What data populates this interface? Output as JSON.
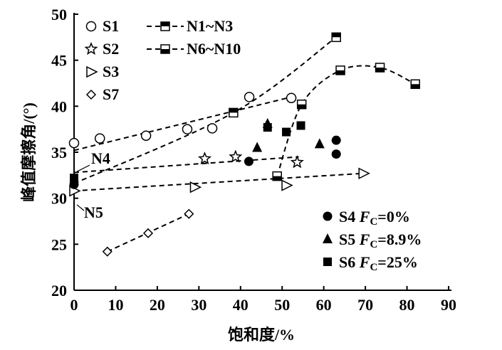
{
  "chart_data": {
    "type": "scatter",
    "xlabel": "饱和度/%",
    "ylabel": "峰值摩擦角/(°)",
    "xlim": [
      0,
      90
    ],
    "ylim": [
      20,
      50
    ],
    "xticks": [
      0,
      10,
      20,
      30,
      40,
      50,
      60,
      70,
      80,
      90
    ],
    "yticks": [
      20,
      25,
      30,
      35,
      40,
      45,
      50
    ],
    "grid": false,
    "legend_placement": "top-left and bottom-right",
    "series": [
      {
        "name": "S1",
        "marker": "circle-open",
        "points": [
          [
            0,
            36.0
          ],
          [
            6.2,
            36.5
          ],
          [
            17.3,
            36.8
          ],
          [
            27.2,
            37.5
          ],
          [
            33.2,
            37.6
          ],
          [
            42.1,
            41.0
          ],
          [
            52.2,
            40.9
          ]
        ],
        "fit": [
          [
            0,
            35.2
          ],
          [
            52.2,
            41.0
          ]
        ]
      },
      {
        "name": "S2",
        "marker": "star-open",
        "points": [
          [
            31.4,
            34.3
          ],
          [
            38.8,
            34.5
          ],
          [
            53.6,
            33.9
          ]
        ],
        "fit": [
          [
            0,
            32.8
          ],
          [
            54,
            34.5
          ]
        ]
      },
      {
        "name": "S3",
        "marker": "triangle-right-open",
        "points": [
          [
            0,
            30.8
          ],
          [
            29,
            31.2
          ],
          [
            51,
            31.4
          ],
          [
            69.5,
            32.7
          ]
        ],
        "fit": [
          [
            0,
            30.8
          ],
          [
            69.5,
            32.7
          ]
        ]
      },
      {
        "name": "S7",
        "marker": "diamond-open",
        "points": [
          [
            8,
            24.2
          ],
          [
            17.8,
            26.2
          ],
          [
            27.6,
            28.3
          ]
        ],
        "fit": [
          [
            8,
            24.2
          ],
          [
            27.6,
            28.3
          ]
        ]
      },
      {
        "name": "N1~N3",
        "marker": "square-half-top",
        "points": [
          [
            38.3,
            39.3
          ],
          [
            63,
            47.5
          ]
        ],
        "fit": [
          [
            0,
            31.6
          ],
          [
            38.3,
            39.3
          ],
          [
            63,
            47.5
          ]
        ]
      },
      {
        "name": "N6~N10",
        "marker": "square-half-bottom",
        "points": [
          [
            48.8,
            32.4
          ],
          [
            54.7,
            40.2
          ],
          [
            64,
            43.9
          ],
          [
            73.5,
            44.2
          ],
          [
            82,
            42.4
          ]
        ],
        "fit": [
          [
            48.8,
            32.4
          ],
          [
            54.7,
            40.2
          ],
          [
            64,
            43.9
          ],
          [
            73.5,
            44.2
          ],
          [
            82,
            42.4
          ]
        ]
      },
      {
        "name": "S4",
        "label_fc": "=0%",
        "marker": "circle-filled",
        "points": [
          [
            0,
            31.5
          ],
          [
            42,
            34.0
          ],
          [
            63,
            36.3
          ],
          [
            63,
            34.8
          ]
        ]
      },
      {
        "name": "S5",
        "label_fc": "=8.9%",
        "marker": "triangle-filled",
        "points": [
          [
            44,
            35.5
          ],
          [
            46.5,
            38.1
          ],
          [
            59,
            35.9
          ]
        ]
      },
      {
        "name": "S6",
        "label_fc": "=25%",
        "marker": "square-filled",
        "points": [
          [
            0,
            32.2
          ],
          [
            46.5,
            37.7
          ],
          [
            51,
            37.2
          ],
          [
            54.5,
            37.9
          ]
        ]
      }
    ],
    "annotations": [
      {
        "text": "N4",
        "x": 0,
        "y": 32.9
      },
      {
        "text": "N5",
        "x": 0,
        "y": 29.7
      }
    ],
    "fc_symbol": "F",
    "fc_sub": "C"
  }
}
